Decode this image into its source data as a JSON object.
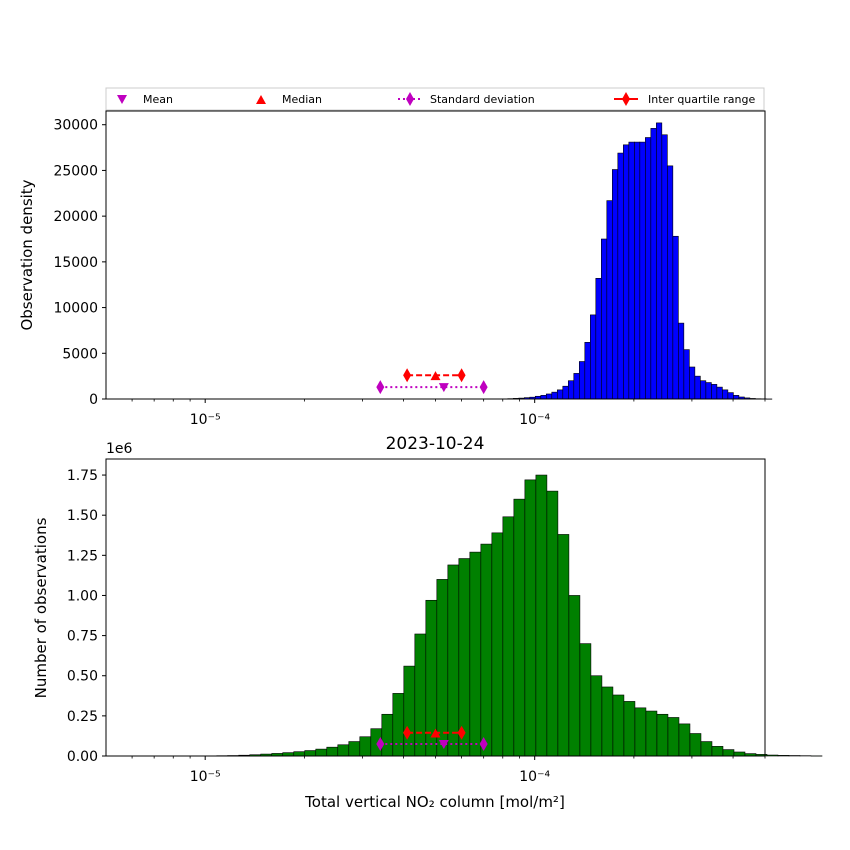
{
  "figure": {
    "title": "2023-10-24"
  },
  "legend": {
    "placement": "top, above upper panel",
    "entries": [
      {
        "label": "Mean",
        "marker": "triangle-down",
        "color": "#bf00bf"
      },
      {
        "label": "Median",
        "marker": "triangle-up",
        "color": "#ff0000"
      },
      {
        "label": "Standard deviation",
        "marker": "thin-diamond",
        "line": "dotted",
        "color": "#bf00bf"
      },
      {
        "label": "Inter quartile range",
        "marker": "thin-diamond",
        "line": "solid",
        "color": "#ff0000"
      }
    ]
  },
  "chart_data": [
    {
      "type": "bar",
      "panel": "upper",
      "xscale": "log",
      "xlim": [
        5e-06,
        0.0005
      ],
      "ylim": [
        0,
        31500
      ],
      "xlabel": "",
      "ylabel": "Observation density",
      "x_tick_labels": [
        "10⁻⁵",
        "10⁻⁴"
      ],
      "y_ticks": [
        0,
        5000,
        10000,
        15000,
        20000,
        25000,
        30000
      ],
      "y_tick_labels": [
        "0",
        "5000",
        "10000",
        "15000",
        "20000",
        "25000",
        "30000"
      ],
      "bar_color": "#0000ff",
      "bins_log10_start": -4.9,
      "bins_log10_step": 0.0167,
      "values": [
        0,
        0,
        0,
        0,
        0,
        0,
        0,
        0,
        0,
        0,
        0,
        0,
        0,
        0,
        0,
        0,
        0,
        0,
        0,
        0,
        0,
        0,
        0,
        0,
        0,
        0,
        0,
        0,
        0,
        0,
        0,
        0,
        0,
        0,
        0,
        0,
        0,
        0,
        0,
        0,
        0,
        0,
        0,
        0,
        0,
        0,
        0,
        0,
        20,
        40,
        70,
        100,
        150,
        200,
        300,
        400,
        550,
        750,
        1000,
        1400,
        2000,
        2800,
        4100,
        6200,
        9200,
        13200,
        17500,
        21700,
        25100,
        26900,
        27800,
        28100,
        28100,
        28100,
        28600,
        29600,
        30200,
        28900,
        25500,
        17800,
        8300,
        5400,
        3500,
        2500,
        2000,
        1800,
        1600,
        1300,
        1000,
        700,
        400,
        220,
        120,
        60,
        30,
        15,
        8,
        0,
        0,
        0,
        0,
        0,
        0,
        0,
        0,
        0,
        0,
        0,
        0,
        0,
        0,
        0,
        0,
        0,
        0,
        0,
        0,
        0,
        0
      ],
      "markers": {
        "mean": {
          "x": 5.3e-05,
          "y": 1300
        },
        "median": {
          "x": 5e-05,
          "y": 2500
        },
        "std_range": {
          "low": 3.4e-05,
          "high": 7e-05,
          "y": 1300
        },
        "iqr": {
          "low": 4.1e-05,
          "high": 6e-05,
          "y": 2600
        }
      }
    },
    {
      "type": "bar",
      "panel": "lower",
      "xscale": "log",
      "xlim": [
        5e-06,
        0.0005
      ],
      "ylim": [
        0,
        1.85
      ],
      "y_multiplier": "1e6",
      "xlabel": "Total vertical NO₂ column [mol/m²]",
      "ylabel": "Number of observations",
      "x_tick_labels": [
        "10⁻⁵",
        "10⁻⁴"
      ],
      "y_ticks": [
        0,
        0.25,
        0.5,
        0.75,
        1.0,
        1.25,
        1.5,
        1.75
      ],
      "y_tick_labels": [
        "0.00",
        "0.25",
        "0.50",
        "0.75",
        "1.00",
        "1.25",
        "1.50",
        "1.75"
      ],
      "bar_color": "#008000",
      "bins_log10_start": -5.8,
      "bins_log10_step": 0.0334,
      "values": [
        0,
        0,
        0,
        0,
        0,
        0,
        0,
        0,
        0,
        0,
        0,
        0,
        0,
        0,
        0,
        0,
        0,
        0,
        0,
        0,
        0,
        0,
        0,
        0,
        0.001,
        0.002,
        0.003,
        0.005,
        0.008,
        0.012,
        0.016,
        0.021,
        0.027,
        0.034,
        0.043,
        0.055,
        0.07,
        0.09,
        0.12,
        0.17,
        0.26,
        0.39,
        0.56,
        0.76,
        0.97,
        1.1,
        1.19,
        1.23,
        1.27,
        1.32,
        1.39,
        1.49,
        1.6,
        1.72,
        1.75,
        1.65,
        1.38,
        1.0,
        0.7,
        0.5,
        0.43,
        0.38,
        0.34,
        0.3,
        0.28,
        0.26,
        0.24,
        0.2,
        0.14,
        0.09,
        0.06,
        0.04,
        0.025,
        0.015,
        0.01,
        0.006,
        0.004,
        0.003,
        0.002,
        0.001,
        0,
        0,
        0,
        0,
        0,
        0,
        0,
        0,
        0,
        0,
        0,
        0,
        0,
        0,
        0,
        0
      ],
      "markers": {
        "mean": {
          "x": 5.3e-05,
          "y": 0.075
        },
        "median": {
          "x": 5e-05,
          "y": 0.14
        },
        "std_range": {
          "low": 3.4e-05,
          "high": 7e-05,
          "y": 0.075
        },
        "iqr": {
          "low": 4.1e-05,
          "high": 6e-05,
          "y": 0.145
        }
      }
    }
  ]
}
